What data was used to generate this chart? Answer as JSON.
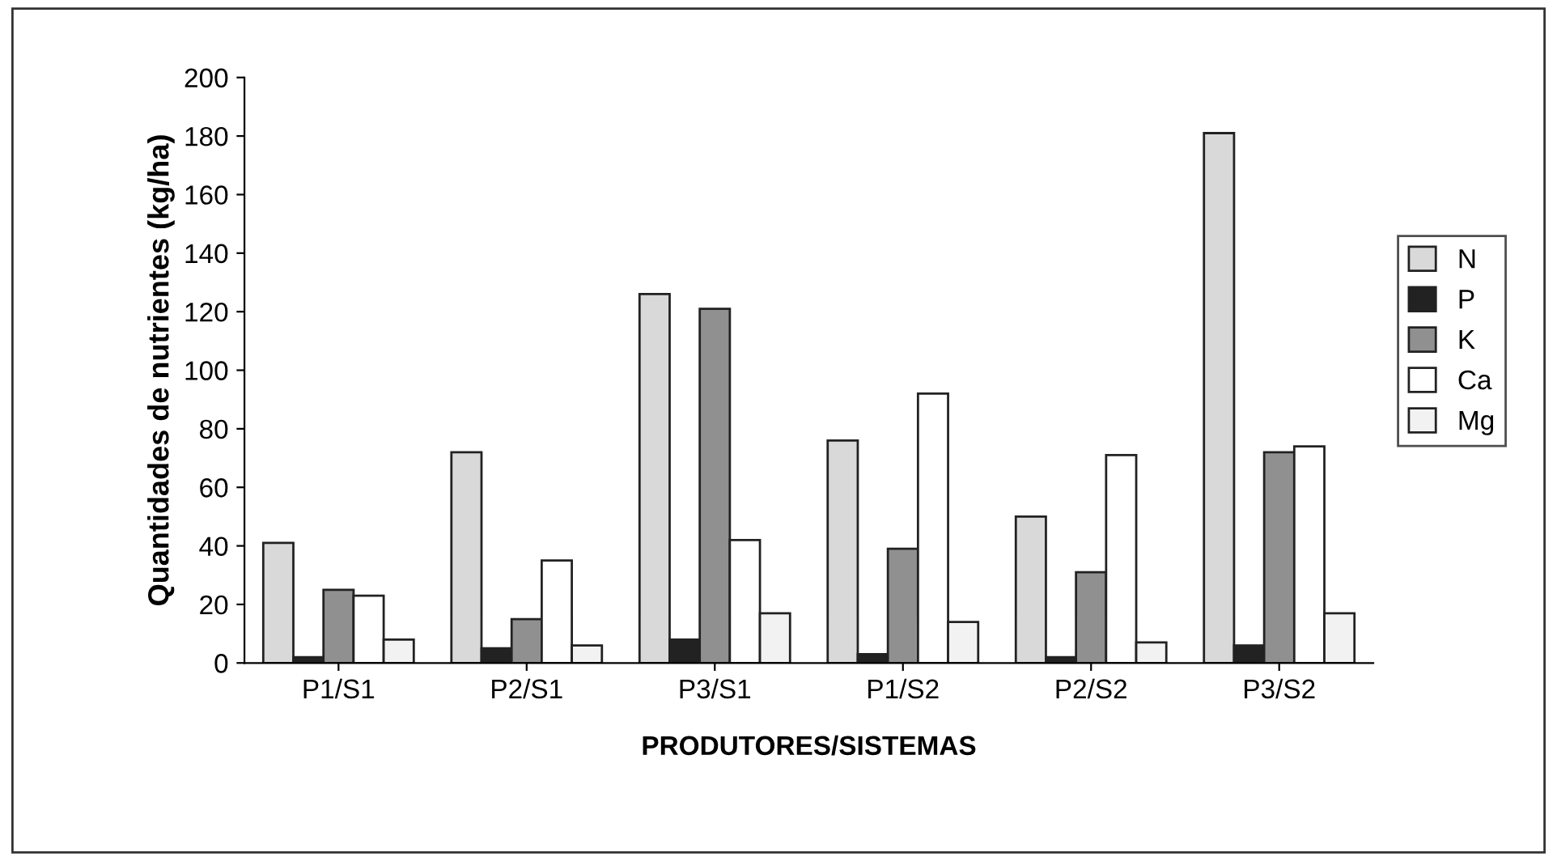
{
  "chart_data": {
    "type": "bar",
    "xlabel": "PRODUTORES/SISTEMAS",
    "ylabel": "Quantidades de nutrientes (kg/ha)",
    "categories": [
      "P1/S1",
      "P2/S1",
      "P3/S1",
      "P1/S2",
      "P2/S2",
      "P3/S2"
    ],
    "series": [
      {
        "name": "N",
        "color": "#d9d9d9",
        "values": [
          41,
          72,
          126,
          76,
          50,
          181
        ]
      },
      {
        "name": "P",
        "color": "#222222",
        "values": [
          2,
          5,
          8,
          3,
          2,
          6
        ]
      },
      {
        "name": "K",
        "color": "#909090",
        "values": [
          25,
          15,
          121,
          39,
          31,
          72
        ]
      },
      {
        "name": "Ca",
        "color": "#ffffff",
        "values": [
          23,
          35,
          42,
          92,
          71,
          74
        ]
      },
      {
        "name": "Mg",
        "color": "#f2f2f2",
        "values": [
          8,
          6,
          17,
          14,
          7,
          17
        ]
      }
    ],
    "ylim": [
      0,
      200
    ],
    "yticks": [
      0,
      20,
      40,
      60,
      80,
      100,
      120,
      140,
      160,
      180,
      200
    ],
    "grid": false,
    "legend": "right"
  }
}
